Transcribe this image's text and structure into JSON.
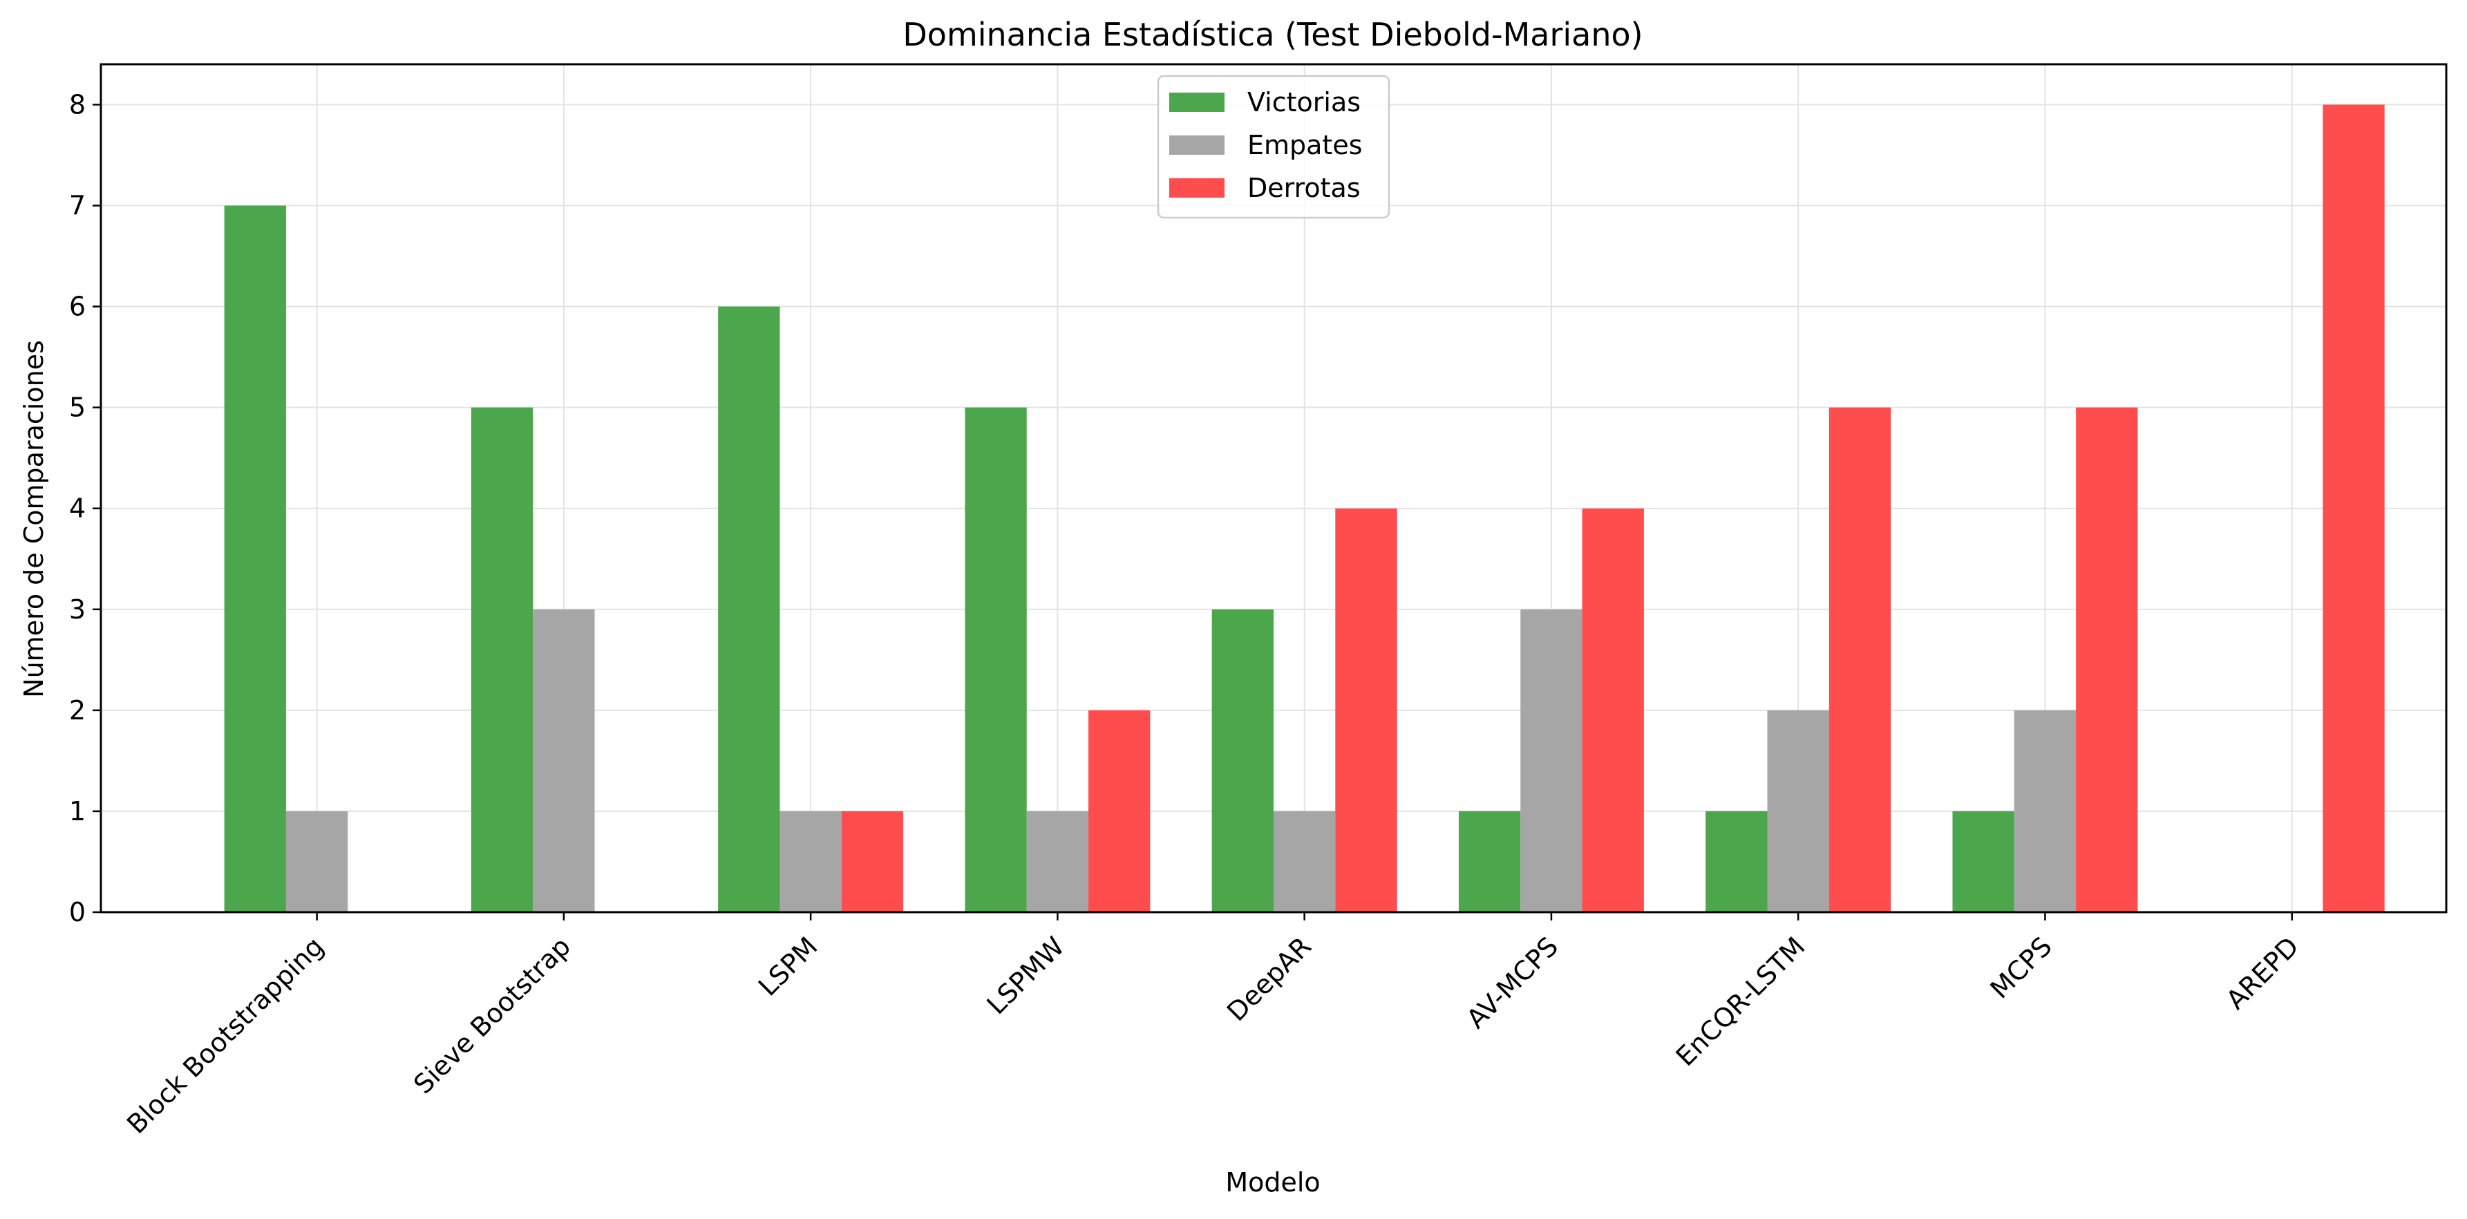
{
  "chart_data": {
    "type": "bar",
    "title": "Dominancia Estadística (Test Diebold-Mariano)",
    "xlabel": "Modelo",
    "ylabel": "Número de Comparaciones",
    "categories": [
      "Block Bootstrapping",
      "Sieve Bootstrap",
      "LSPM",
      "LSPMW",
      "DeepAR",
      "AV-MCPS",
      "EnCQR-LSTM",
      "MCPS",
      "AREPD"
    ],
    "series": [
      {
        "name": "Victorias",
        "color": "#4ca64c",
        "values": [
          7,
          5,
          6,
          5,
          3,
          1,
          1,
          1,
          0
        ]
      },
      {
        "name": "Empates",
        "color": "#a6a6a6",
        "values": [
          1,
          3,
          1,
          1,
          1,
          3,
          2,
          2,
          0
        ]
      },
      {
        "name": "Derrotas",
        "color": "#ff4c4c",
        "values": [
          0,
          0,
          1,
          2,
          4,
          4,
          5,
          5,
          8
        ]
      }
    ],
    "ylim": [
      0,
      8.4
    ],
    "yticks": [
      0,
      1,
      2,
      3,
      4,
      5,
      6,
      7,
      8
    ],
    "grid": true,
    "legend_position": "top-center"
  }
}
